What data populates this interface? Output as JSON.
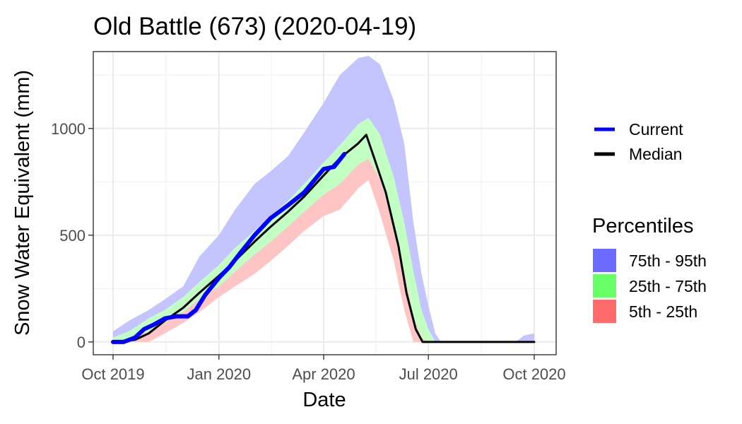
{
  "chart_data": {
    "type": "area",
    "title": "Old Battle (673) (2020-04-19)",
    "xlabel": "Date",
    "ylabel": "Snow Water Equivalent (mm)",
    "xlim": [
      "2019-10-01",
      "2020-10-01"
    ],
    "ylim": [
      -60,
      1360
    ],
    "x_ticks": [
      {
        "date": "2019-10-01",
        "label": "Oct 2019"
      },
      {
        "date": "2020-01-01",
        "label": "Jan 2020"
      },
      {
        "date": "2020-04-01",
        "label": "Apr 2020"
      },
      {
        "date": "2020-07-01",
        "label": "Jul 2020"
      },
      {
        "date": "2020-10-01",
        "label": "Oct 2020"
      }
    ],
    "y_ticks": [
      {
        "value": 0,
        "label": "0"
      },
      {
        "value": 500,
        "label": "500"
      },
      {
        "value": 1000,
        "label": "1000"
      }
    ],
    "grid": true,
    "legend": {
      "position": "right",
      "lines": [
        {
          "name": "Current",
          "color": "#0000ff"
        },
        {
          "name": "Median",
          "color": "#000000"
        }
      ],
      "bands_title": "Percentiles",
      "bands": [
        {
          "name": "75th - 95th",
          "color": "#6b6bff"
        },
        {
          "name": "25th - 75th",
          "color": "#66ff66"
        },
        {
          "name": "5th - 25th",
          "color": "#ff6b6b"
        }
      ]
    },
    "band_fill": {
      "p75_p95": "#c4c4ff",
      "p25_p75": "#c2ffc2",
      "p5_p25": "#ffc4c4"
    },
    "bands": [
      {
        "date": "2019-10-01",
        "p5": 0,
        "p25": 0,
        "p75": 20,
        "p95": 50
      },
      {
        "date": "2019-10-15",
        "p5": 0,
        "p25": 10,
        "p75": 50,
        "p95": 100
      },
      {
        "date": "2019-11-01",
        "p5": 0,
        "p25": 50,
        "p75": 110,
        "p95": 150
      },
      {
        "date": "2019-11-15",
        "p5": 40,
        "p25": 90,
        "p75": 150,
        "p95": 200
      },
      {
        "date": "2019-12-01",
        "p5": 90,
        "p25": 140,
        "p75": 210,
        "p95": 260
      },
      {
        "date": "2019-12-15",
        "p5": 140,
        "p25": 200,
        "p75": 280,
        "p95": 400
      },
      {
        "date": "2020-01-01",
        "p5": 210,
        "p25": 260,
        "p75": 360,
        "p95": 500
      },
      {
        "date": "2020-01-15",
        "p5": 260,
        "p25": 330,
        "p75": 440,
        "p95": 620
      },
      {
        "date": "2020-02-01",
        "p5": 320,
        "p25": 410,
        "p75": 520,
        "p95": 740
      },
      {
        "date": "2020-02-15",
        "p5": 380,
        "p25": 470,
        "p75": 590,
        "p95": 800
      },
      {
        "date": "2020-03-01",
        "p5": 450,
        "p25": 540,
        "p75": 660,
        "p95": 870
      },
      {
        "date": "2020-03-15",
        "p5": 520,
        "p25": 610,
        "p75": 740,
        "p95": 980
      },
      {
        "date": "2020-04-01",
        "p5": 590,
        "p25": 690,
        "p75": 840,
        "p95": 1120
      },
      {
        "date": "2020-04-15",
        "p5": 620,
        "p25": 740,
        "p75": 920,
        "p95": 1250
      },
      {
        "date": "2020-05-01",
        "p5": 720,
        "p25": 830,
        "p75": 1020,
        "p95": 1330
      },
      {
        "date": "2020-05-10",
        "p5": 760,
        "p25": 860,
        "p75": 1050,
        "p95": 1340
      },
      {
        "date": "2020-05-20",
        "p5": 600,
        "p25": 760,
        "p75": 970,
        "p95": 1300
      },
      {
        "date": "2020-06-01",
        "p5": 380,
        "p25": 550,
        "p75": 770,
        "p95": 1130
      },
      {
        "date": "2020-06-10",
        "p5": 150,
        "p25": 330,
        "p75": 560,
        "p95": 930
      },
      {
        "date": "2020-06-18",
        "p5": 0,
        "p25": 120,
        "p75": 330,
        "p95": 560
      },
      {
        "date": "2020-06-25",
        "p5": 0,
        "p25": 20,
        "p75": 150,
        "p95": 320
      },
      {
        "date": "2020-07-01",
        "p5": 0,
        "p25": 0,
        "p75": 60,
        "p95": 170
      },
      {
        "date": "2020-07-07",
        "p5": 0,
        "p25": 0,
        "p75": 0,
        "p95": 40
      },
      {
        "date": "2020-07-12",
        "p5": 0,
        "p25": 0,
        "p75": 0,
        "p95": 0
      },
      {
        "date": "2020-09-15",
        "p5": 0,
        "p25": 0,
        "p75": 0,
        "p95": 0
      },
      {
        "date": "2020-09-22",
        "p5": 0,
        "p25": 0,
        "p75": 0,
        "p95": 30
      },
      {
        "date": "2020-10-01",
        "p5": 0,
        "p25": 0,
        "p75": 0,
        "p95": 40
      }
    ],
    "series": [
      {
        "name": "Current",
        "color": "#0000ff",
        "points": [
          {
            "date": "2019-10-01",
            "value": 0
          },
          {
            "date": "2019-10-10",
            "value": 0
          },
          {
            "date": "2019-10-20",
            "value": 20
          },
          {
            "date": "2019-10-28",
            "value": 60
          },
          {
            "date": "2019-11-05",
            "value": 80
          },
          {
            "date": "2019-11-15",
            "value": 110
          },
          {
            "date": "2019-11-25",
            "value": 120
          },
          {
            "date": "2019-12-05",
            "value": 120
          },
          {
            "date": "2019-12-12",
            "value": 150
          },
          {
            "date": "2019-12-20",
            "value": 220
          },
          {
            "date": "2020-01-01",
            "value": 300
          },
          {
            "date": "2020-01-10",
            "value": 350
          },
          {
            "date": "2020-01-20",
            "value": 420
          },
          {
            "date": "2020-02-01",
            "value": 500
          },
          {
            "date": "2020-02-15",
            "value": 580
          },
          {
            "date": "2020-03-01",
            "value": 640
          },
          {
            "date": "2020-03-15",
            "value": 700
          },
          {
            "date": "2020-04-01",
            "value": 810
          },
          {
            "date": "2020-04-10",
            "value": 820
          },
          {
            "date": "2020-04-19",
            "value": 880
          }
        ]
      },
      {
        "name": "Median",
        "color": "#000000",
        "points": [
          {
            "date": "2019-10-01",
            "value": 0
          },
          {
            "date": "2019-10-20",
            "value": 10
          },
          {
            "date": "2019-11-01",
            "value": 40
          },
          {
            "date": "2019-11-15",
            "value": 100
          },
          {
            "date": "2019-12-01",
            "value": 160
          },
          {
            "date": "2019-12-15",
            "value": 230
          },
          {
            "date": "2020-01-01",
            "value": 310
          },
          {
            "date": "2020-01-15",
            "value": 380
          },
          {
            "date": "2020-02-01",
            "value": 470
          },
          {
            "date": "2020-02-15",
            "value": 540
          },
          {
            "date": "2020-03-01",
            "value": 610
          },
          {
            "date": "2020-03-15",
            "value": 680
          },
          {
            "date": "2020-04-01",
            "value": 780
          },
          {
            "date": "2020-04-15",
            "value": 860
          },
          {
            "date": "2020-05-01",
            "value": 930
          },
          {
            "date": "2020-05-08",
            "value": 970
          },
          {
            "date": "2020-05-15",
            "value": 860
          },
          {
            "date": "2020-05-25",
            "value": 700
          },
          {
            "date": "2020-06-05",
            "value": 450
          },
          {
            "date": "2020-06-12",
            "value": 230
          },
          {
            "date": "2020-06-20",
            "value": 60
          },
          {
            "date": "2020-06-26",
            "value": 0
          },
          {
            "date": "2020-10-01",
            "value": 0
          }
        ]
      }
    ]
  }
}
